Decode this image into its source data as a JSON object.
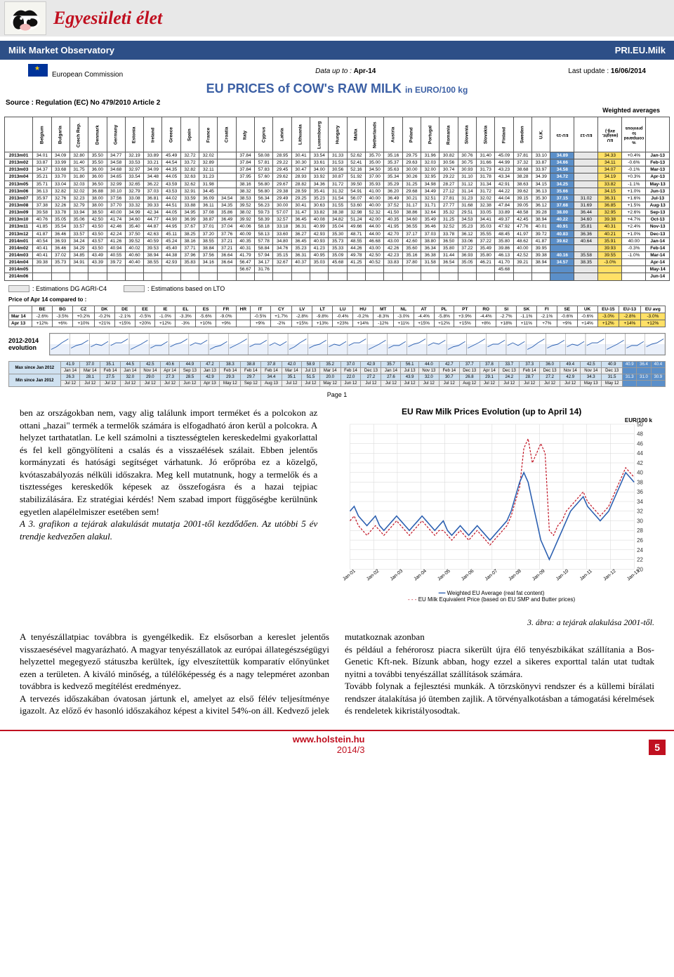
{
  "header": {
    "section": "Egyesületi élet"
  },
  "obs": {
    "left": "Milk Market Observatory",
    "right": "PRI.EU.Milk",
    "ec_label": "European\nCommission",
    "data_upto_label": "Data up to :",
    "data_upto": "Apr-14",
    "update_label": "Last update :",
    "update": "16/06/2014",
    "title_line1": "EU PRICES of COW's RAW MILK",
    "title_sub": "in EURO/100 kg",
    "source": "Source : Regulation (EC) No 479/2010 Article 2",
    "wa_label": "Weighted averages",
    "est1": ": Estimations DG AGRI-C4",
    "est2": ": Estimations based on LTO"
  },
  "countries": [
    "Belgium",
    "Bulgaria",
    "Czech Rep.",
    "Denmark",
    "Germany",
    "Estonia",
    "Ireland",
    "Greece",
    "Spain",
    "France",
    "Croatia",
    "Italy",
    "Cyprus",
    "Latvia",
    "Lithuania",
    "Luxembourg",
    "Hungary",
    "Malta",
    "Netherlands",
    "Austria",
    "Poland",
    "Portugal",
    "Romania",
    "Slovenia",
    "Slovakia",
    "Finland",
    "Sweden",
    "U.K."
  ],
  "eu_cols": [
    "EU-15",
    "EU-13",
    "EU (weight. avg.)",
    "% compared to previous"
  ],
  "months": [
    "2013m01",
    "2013m02",
    "2013m03",
    "2013m04",
    "2013m05",
    "2013m06",
    "2013m07",
    "2013m08",
    "2013m09",
    "2013m10",
    "2013m11",
    "2013m12",
    "2014m01",
    "2014m02",
    "2014m03",
    "2014m04",
    "2014m05",
    "2014m06"
  ],
  "right_months": [
    "Jan-13",
    "Feb-13",
    "Mar-13",
    "Apr-13",
    "May-13",
    "Jun-13",
    "Jul-13",
    "Aug-13",
    "Sep-13",
    "Oct-13",
    "Nov-13",
    "Dec-13",
    "Jan-14",
    "Feb-14",
    "Mar-14",
    "Apr-14",
    "May-14",
    "Jun-14"
  ],
  "price_rows": [
    [
      "34.01",
      "34.09",
      "32.80",
      "35.50",
      "34.77",
      "32.19",
      "33.89",
      "45.49",
      "32.72",
      "32.02",
      "",
      "37.84",
      "58.08",
      "28.95",
      "30.41",
      "33.54",
      "31.33",
      "52.62",
      "35.70",
      "35.16",
      "29.75",
      "31.96",
      "30.82",
      "30.76",
      "31.40",
      "45.09",
      "37.81",
      "33.10",
      "34.89",
      "",
      "34.33",
      "+0.4%"
    ],
    [
      "33.87",
      "33.99",
      "31.40",
      "35.50",
      "34.58",
      "33.53",
      "33.21",
      "44.54",
      "33.72",
      "32.89",
      "",
      "37.84",
      "57.81",
      "29.22",
      "30.30",
      "33.61",
      "31.53",
      "52.41",
      "35.00",
      "35.37",
      "29.63",
      "32.03",
      "30.56",
      "30.75",
      "31.66",
      "44.99",
      "37.32",
      "33.87",
      "34.66",
      "",
      "34.11",
      "-0.6%"
    ],
    [
      "34.37",
      "33.68",
      "31.75",
      "36.00",
      "34.68",
      "32.97",
      "34.09",
      "44.35",
      "32.82",
      "32.11",
      "",
      "37.84",
      "57.83",
      "29.45",
      "30.47",
      "34.00",
      "30.56",
      "52.16",
      "34.50",
      "35.63",
      "30.00",
      "32.00",
      "30.74",
      "30.93",
      "31.73",
      "43.23",
      "38.68",
      "33.97",
      "34.58",
      "",
      "34.07",
      "-0.1%"
    ],
    [
      "35.21",
      "33.70",
      "31.80",
      "36.00",
      "34.65",
      "33.54",
      "34.48",
      "44.05",
      "32.63",
      "31.23",
      "",
      "37.95",
      "57.60",
      "29.62",
      "28.93",
      "33.92",
      "30.87",
      "51.92",
      "37.00",
      "35.34",
      "30.26",
      "32.95",
      "29.22",
      "31.10",
      "31.78",
      "43.34",
      "38.28",
      "34.39",
      "34.72",
      "",
      "34.19",
      "+0.3%"
    ],
    [
      "35.71",
      "33.04",
      "32.03",
      "36.50",
      "32.99",
      "32.65",
      "36.22",
      "43.59",
      "32.62",
      "31.98",
      "",
      "38.16",
      "56.80",
      "29.67",
      "28.82",
      "34.36",
      "31.72",
      "39.50",
      "35.93",
      "35.29",
      "31.25",
      "34.98",
      "28.27",
      "31.12",
      "31.34",
      "42.91",
      "38.63",
      "34.15",
      "34.25",
      "",
      "33.82",
      "-1.1%"
    ],
    [
      "36.13",
      "32.82",
      "32.02",
      "36.88",
      "30.10",
      "32.79",
      "37.03",
      "43.53",
      "32.91",
      "34.45",
      "",
      "38.32",
      "56.80",
      "29.38",
      "28.59",
      "35.41",
      "31.32",
      "54.91",
      "41.00",
      "36.20",
      "29.68",
      "34.49",
      "27.12",
      "31.14",
      "31.72",
      "44.22",
      "39.62",
      "36.13",
      "35.66",
      "",
      "34.15",
      "+1.0%"
    ],
    [
      "35.97",
      "32.76",
      "32.23",
      "38.00",
      "37.56",
      "33.08",
      "36.81",
      "44.02",
      "33.59",
      "36.09",
      "34.54",
      "38.53",
      "56.34",
      "29.49",
      "29.25",
      "35.23",
      "31.54",
      "56.07",
      "40.00",
      "36.49",
      "30.21",
      "32.51",
      "27.81",
      "31.23",
      "32.02",
      "44.04",
      "39.15",
      "35.30",
      "37.15",
      "31.02",
      "36.31",
      "+1.6%"
    ],
    [
      "37.38",
      "32.26",
      "32.79",
      "38.00",
      "37.70",
      "33.32",
      "39.33",
      "44.51",
      "33.88",
      "36.11",
      "34.35",
      "39.52",
      "56.23",
      "30.00",
      "30.41",
      "30.63",
      "31.55",
      "53.60",
      "40.00",
      "37.52",
      "31.17",
      "31.71",
      "27.77",
      "31.68",
      "32.38",
      "47.84",
      "39.05",
      "36.12",
      "37.68",
      "31.69",
      "36.85",
      "+1.5%"
    ],
    [
      "39.58",
      "33.78",
      "33.94",
      "38.50",
      "40.00",
      "34.99",
      "42.34",
      "44.05",
      "34.95",
      "37.08",
      "35.86",
      "38.02",
      "59.73",
      "57.07",
      "31.47",
      "33.82",
      "38.38",
      "32.98",
      "52.32",
      "41.50",
      "38.86",
      "32.64",
      "35.32",
      "29.51",
      "33.05",
      "33.89",
      "48.58",
      "39.28",
      "38.00",
      "36.44",
      "32.95",
      "+2.6%"
    ],
    [
      "40.76",
      "35.05",
      "35.06",
      "42.50",
      "41.74",
      "34.60",
      "44.77",
      "44.90",
      "36.99",
      "38.87",
      "36.49",
      "39.92",
      "58.39",
      "32.57",
      "36.45",
      "40.08",
      "34.82",
      "51.24",
      "42.00",
      "40.35",
      "34.60",
      "35.49",
      "31.25",
      "34.53",
      "34.41",
      "49.37",
      "42.45",
      "38.94",
      "40.22",
      "34.60",
      "39.38",
      "+4.7%"
    ],
    [
      "41.85",
      "35.54",
      "33.57",
      "43.50",
      "42.46",
      "35.40",
      "44.87",
      "44.95",
      "37.67",
      "37.01",
      "37.04",
      "40.06",
      "58.18",
      "33.18",
      "36.31",
      "40.99",
      "35.04",
      "49.66",
      "44.00",
      "41.95",
      "36.55",
      "36.46",
      "32.52",
      "35.23",
      "35.03",
      "47.92",
      "47.76",
      "40.01",
      "40.91",
      "35.81",
      "40.31",
      "+2.4%"
    ],
    [
      "41.87",
      "36.46",
      "33.57",
      "43.50",
      "42.24",
      "37.50",
      "42.63",
      "45.11",
      "38.25",
      "37.20",
      "37.76",
      "40.09",
      "58.13",
      "33.60",
      "36.27",
      "42.93",
      "35.30",
      "48.71",
      "44.00",
      "42.70",
      "37.17",
      "37.03",
      "33.78",
      "36.12",
      "35.55",
      "48.45",
      "41.97",
      "39.72",
      "40.83",
      "36.36",
      "40.21",
      "+1.0%"
    ],
    [
      "40.54",
      "36.93",
      "34.24",
      "43.57",
      "41.26",
      "39.52",
      "40.59",
      "45.24",
      "38.16",
      "38.55",
      "37.21",
      "40.35",
      "57.78",
      "34.80",
      "36.45",
      "40.93",
      "35.73",
      "48.55",
      "46.68",
      "43.00",
      "42.60",
      "38.80",
      "36.50",
      "33.06",
      "37.22",
      "35.80",
      "48.62",
      "41.87",
      "39.62",
      "40.64",
      "35.91",
      "40.00",
      "-0.6%"
    ],
    [
      "40.41",
      "36.46",
      "34.29",
      "43.50",
      "40.94",
      "40.02",
      "39.53",
      "45.40",
      "37.71",
      "38.84",
      "37.21",
      "40.31",
      "58.84",
      "34.76",
      "35.23",
      "41.23",
      "35.33",
      "44.26",
      "43.00",
      "42.26",
      "35.60",
      "36.34",
      "35.80",
      "37.22",
      "35.49",
      "39.86",
      "40.00",
      "39.95",
      "",
      "",
      "39.93",
      "-0.3%"
    ],
    [
      "40.41",
      "37.02",
      "34.85",
      "43.49",
      "40.55",
      "40.60",
      "38.94",
      "44.38",
      "37.96",
      "37.56",
      "36.64",
      "41.79",
      "57.94",
      "35.15",
      "36.31",
      "40.95",
      "35.09",
      "49.78",
      "42.50",
      "42.23",
      "35.16",
      "36.38",
      "31.44",
      "36.93",
      "35.80",
      "46.13",
      "42.52",
      "39.38",
      "40.16",
      "35.58",
      "39.55",
      "-1.0%"
    ],
    [
      "39.38",
      "35.73",
      "34.91",
      "43.39",
      "39.72",
      "40.40",
      "38.55",
      "42.93",
      "35.83",
      "34.16",
      "36.64",
      "56.47",
      "34.17",
      "32.67",
      "40.37",
      "35.03",
      "45.68",
      "41.25",
      "40.52",
      "33.83",
      "37.80",
      "31.58",
      "36.54",
      "35.05",
      "46.21",
      "41.70",
      "39.21",
      "38.94",
      "34.57",
      "38.35",
      "-3.0%"
    ],
    [
      "",
      "",
      "",
      "",
      "",
      "",
      "",
      "",
      "",
      "",
      "",
      "56.67",
      "31.76",
      "",
      "",
      "",
      "",
      "",
      "",
      "",
      "",
      "",
      "",
      "",
      "",
      "45.68",
      "",
      "",
      " ",
      " ",
      " ",
      ""
    ],
    [
      "",
      "",
      "",
      "",
      "",
      "",
      "",
      "",
      "",
      "",
      "",
      "",
      "",
      "",
      "",
      "",
      "",
      "",
      "",
      "",
      "",
      "",
      "",
      "",
      "",
      "",
      "",
      "",
      "",
      "",
      "",
      ""
    ]
  ],
  "compare": {
    "label": "Price of Apr 14 compared to :",
    "countries_short": [
      "BE",
      "BG",
      "CZ",
      "DK",
      "DE",
      "EE",
      "IE",
      "EL",
      "ES",
      "FR",
      "HR",
      "IT",
      "CY",
      "LV",
      "LT",
      "LU",
      "HU",
      "MT",
      "NL",
      "AT",
      "PL",
      "PT",
      "RO",
      "SI",
      "SK",
      "FI",
      "SE",
      "UK"
    ],
    "extra": [
      "EU-15",
      "EU-13",
      "EU avg"
    ],
    "rows": [
      {
        "lbl": "Mar 14",
        "vals": [
          "-2.6%",
          "-3.5%",
          "+0.2%",
          "-0.2%",
          "-2.1%",
          "-0.5%",
          "-1.0%",
          "-3.3%",
          "-5.6%",
          "-9.0%",
          "",
          "-0.5%",
          "+1.7%",
          "-2.8%",
          "-9.8%",
          "-0.4%",
          "-0.2%",
          "-8.3%",
          "-3.0%",
          "-4.4%",
          "-5.8%",
          "+3.9%",
          "-4.4%",
          "-2.7%",
          "-1.1%",
          "-2.1%",
          "-0.6%",
          "-0.6%"
        ],
        "ex": [
          "-3.0%",
          "-2.8%",
          "-3.0%"
        ]
      },
      {
        "lbl": "Apr 13",
        "vals": [
          "+12%",
          "+6%",
          "+10%",
          "+21%",
          "+15%",
          "+20%",
          "+12%",
          "-3%",
          "+10%",
          "+9%",
          "",
          "+9%",
          "-2%",
          "+15%",
          "+13%",
          "+23%",
          "+14%",
          "-12%",
          "+11%",
          "+15%",
          "+12%",
          "+15%",
          "+8%",
          "+18%",
          "+11%",
          "+7%",
          "+9%",
          "+14%"
        ],
        "ex": [
          "+12%",
          "+14%",
          "+12%"
        ]
      }
    ]
  },
  "evo": {
    "label": "2012-2014 evolution"
  },
  "minmax": {
    "rows": [
      {
        "lbl": "Max since Jan 2012",
        "v": [
          "41.9",
          "37.0",
          "35.1",
          "44.5",
          "42.5",
          "40.6",
          "44.9",
          "47.2",
          "38.3",
          "38.8",
          "37.8",
          "42.0",
          "58.9",
          "35.2",
          "37.0",
          "42.9",
          "35.7",
          "56.1",
          "44.0",
          "42.7",
          "37.7",
          "37.8",
          "33.7",
          "37.3",
          "36.0",
          "49.4",
          "42.5",
          "40.9"
        ],
        "ex": [
          "40.9",
          "36.4",
          "40.4"
        ],
        "d": [
          "Jan 14",
          "Mar 14",
          "Feb 14",
          "Jan 14",
          "Nov 14",
          "Apr 14",
          "Sep 13",
          "Jan 13",
          "Feb 14",
          "Feb 14",
          "Feb 14",
          "Mar 14",
          "Jul 13",
          "Mar 14",
          "Feb 14",
          "Dec 13",
          "Jan 14",
          "Jul 13",
          "Nov 13",
          "Feb 14",
          "Dec 13",
          "Apr 14",
          "Dec 13",
          "Feb 14",
          "Dec 13",
          "Nov 14",
          "Nov 14",
          "Dec 13"
        ]
      },
      {
        "lbl": "Min since Jan 2012",
        "v": [
          "26.3",
          "28.1",
          "27.5",
          "32.0",
          "29.0",
          "27.3",
          "28.5",
          "42.9",
          "29.3",
          "29.7",
          "34.4",
          "35.1",
          "51.5",
          "20.0",
          "22.0",
          "27.2",
          "27.6",
          "43.9",
          "32.0",
          "30.7",
          "26.8",
          "29.1",
          "24.2",
          "28.7",
          "27.2",
          "42.9",
          "34.3",
          "31.5"
        ],
        "ex": [
          "31.3",
          "31.0",
          "30.9"
        ],
        "d": [
          "Jul 12",
          "Jul 12",
          "Jul 12",
          "Jul 12",
          "Jul 12",
          "Jul 12",
          "Jun 12",
          "Apr 13",
          "May 12",
          "Sep 12",
          "Aug 13",
          "Jul 12",
          "Jul 12",
          "May 12",
          "Jun 12",
          "Jul 12",
          "Jul 12",
          "Jul 12",
          "Jul 12",
          "Jul 12",
          "Aug 12",
          "Jul 12",
          "Jul 12",
          "Jul 12",
          "Jul 12",
          "Jul 12",
          "May 13",
          "May 12"
        ]
      }
    ]
  },
  "page_number": "Page 1",
  "chart2": {
    "title": "EU Raw Milk Prices Evolution (up to  April 14)",
    "unit": "EUR/100 k",
    "ymin": 20,
    "ymax": 50,
    "ystep": 2,
    "xlabels": [
      "Jan-01",
      "Jan-02",
      "Jan-03",
      "Jan-04",
      "Jan-05",
      "Jan-06",
      "Jan-07",
      "Jan-08",
      "Jan-09",
      "Jan-10",
      "Jan-11",
      "Jan-12",
      "Jan-13"
    ],
    "blue_color": "#2b5fb0",
    "red_color": "#c01020",
    "grid_color": "#d5d5d5",
    "blue_series": [
      32,
      33,
      31,
      30,
      29,
      30,
      31,
      29,
      28,
      29,
      30,
      31,
      30,
      29,
      28,
      29,
      30,
      31,
      30,
      29,
      28,
      29,
      30,
      28,
      27,
      28,
      29,
      28,
      27,
      28,
      29,
      28,
      27,
      26,
      27,
      28,
      29,
      30,
      32,
      35,
      38,
      40,
      38,
      34,
      30,
      26,
      24,
      22,
      24,
      26,
      28,
      30,
      32,
      33,
      34,
      35,
      33,
      32,
      31,
      30,
      31,
      32,
      34,
      36,
      38,
      40,
      39,
      38
    ],
    "red_series": [
      30,
      31,
      29,
      28,
      27,
      28,
      29,
      28,
      27,
      28,
      29,
      30,
      29,
      28,
      27,
      28,
      29,
      30,
      29,
      28,
      27,
      28,
      28,
      27,
      26,
      27,
      28,
      27,
      26,
      27,
      28,
      27,
      26,
      25,
      26,
      27,
      28,
      29,
      31,
      34,
      37,
      45,
      47,
      42,
      44,
      46,
      44,
      28,
      27,
      29,
      30,
      32,
      33,
      34,
      35,
      36,
      34,
      33,
      32,
      31,
      32,
      33,
      35,
      37,
      39,
      41,
      40,
      39
    ],
    "legend1": "Weighted EU Average (real fat content)",
    "legend2": "EU Milk Equivalent Price (based on EU SMP and Butter prices)"
  },
  "article": {
    "p1": "ben az országokban nem, vagy alig találunk import terméket és a polcokon az ottani „hazai\" termék a termelők számára is elfogadható áron kerül a polcokra. A helyzet tarthatatlan. Le kell számolni a tisztességtelen kereskedelmi gyakorlattal és fel kell göngyölíteni a csalás és a visszaélések szálait. Ebben jelentős kormányzati és hatósági segítséget várhatunk. Jó erőpróba ez a közelgő, kvótaszabályozás nélküli időszakra. Meg kell mutatnunk, hogy a termelők és a tisztességes kereskedők képesek az összefogásra és a hazai tejpiac stabilizálására. Ez stratégiai kérdés! Nem szabad import függőségbe kerülnünk egyetlen alapélelmiszer esetében sem!",
    "p1b": "A 3. grafikon a tejárak alakulását mutatja 2001-től kezdődően. Az utóbbi 5 év trendje kedvezően alakul.",
    "p_left2": "A tenyészállatpiac továbbra is gyengélkedik. Ez elsősorban a kereslet jelentős visszaesésével magyarázható. A magyar tenyészállatok az európai állategészségügyi helyzettel megegyező státuszba kerültek, így elveszítettük komparatív előnyünket ezen a területen. A kiváló minőség, a túlélőképesség és a nagy telepméret azonban továbbra is kedvező megítélést eredményez.",
    "p_left3": "A tervezés időszakában óvatosan jártunk el, amelyet az első félév teljesítménye igazolt. Az előző év hasonló időszakához képest a kivitel 54%-on áll. Kedvező jelek mutatkoznak azonban",
    "caption": "3. ábra: a tejárak alakulása 2001-től.",
    "p_right2": "és például a fehérorosz piacra sikerült újra élő tenyészbikákat szállítania a Bos-Genetic Kft-nek. Bízunk abban, hogy ezzel a sikeres exporttal talán utat tudtak nyitni a további tenyészállat szállítások számára.",
    "p_right3": "Tovább folynak a fejlesztési munkák. A törzskönyvi rendszer és a küllemi bírálati rendszer átalakítása jó ütemben zajlik. A törvényalkotásban a támogatási kérelmések és rendeletek kikristályosodtak."
  },
  "footer": {
    "url": "www.holstein.hu",
    "date": "2014/3",
    "pg": "5"
  }
}
